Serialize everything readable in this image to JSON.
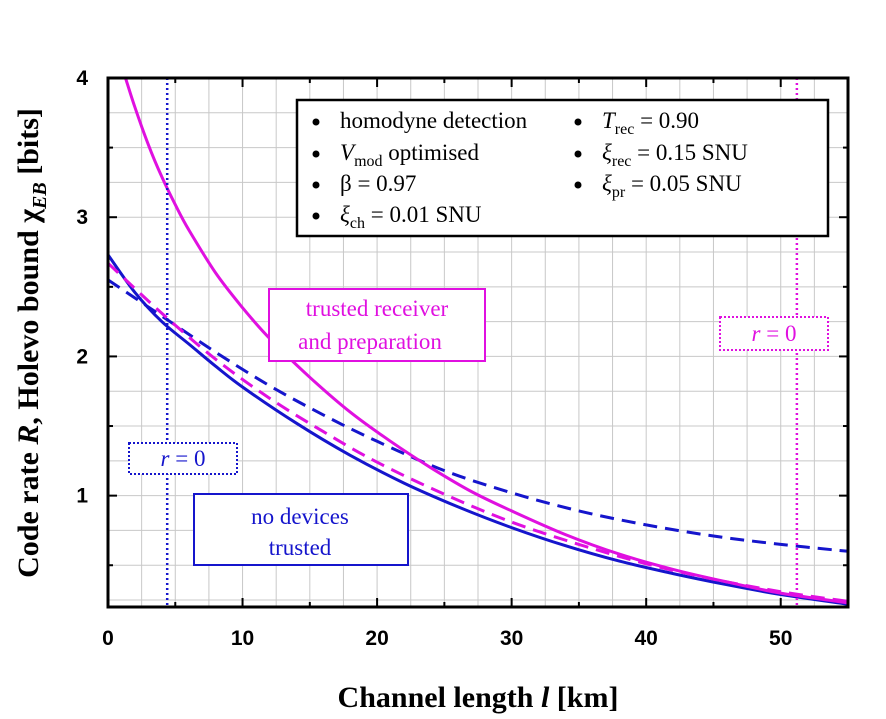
{
  "chart_data": {
    "type": "line",
    "xlabel": "Channel length",
    "xlabel_var": "l",
    "xlabel_unit": "[km]",
    "ylabel_prefix": "Code rate",
    "ylabel_var_r": "R",
    "ylabel_middle": ", Holevo bound",
    "ylabel_chi": "χ",
    "ylabel_sub": "EB",
    "ylabel_unit": "[bits]",
    "xlim": [
      0,
      55
    ],
    "ylim": [
      0.2,
      4
    ],
    "xticks": [
      "0",
      "10",
      "20",
      "30",
      "40",
      "50"
    ],
    "yticks": [
      "1",
      "2",
      "3",
      "4"
    ],
    "grid": true,
    "colors": {
      "blue": "#1515cc",
      "magenta": "#e010e0"
    },
    "series": [
      {
        "name": "code rate R, no devices trusted",
        "color": "#1515cc",
        "dash": "solid",
        "x": [
          0,
          2,
          4,
          6,
          8,
          10,
          14,
          18,
          22,
          26,
          30,
          34,
          38,
          42,
          46,
          50,
          55
        ],
        "y": [
          2.73,
          2.46,
          2.25,
          2.09,
          1.93,
          1.78,
          1.52,
          1.29,
          1.09,
          0.92,
          0.77,
          0.64,
          0.53,
          0.44,
          0.36,
          0.29,
          0.22
        ]
      },
      {
        "name": "Holevo bound, no devices trusted",
        "color": "#1515cc",
        "dash": "dashed",
        "x": [
          0,
          4,
          8,
          12,
          16,
          20,
          25,
          30,
          35,
          40,
          45,
          50,
          55
        ],
        "y": [
          2.55,
          2.29,
          2.03,
          1.79,
          1.58,
          1.39,
          1.18,
          1.02,
          0.89,
          0.79,
          0.71,
          0.65,
          0.6
        ]
      },
      {
        "name": "code rate R, trusted receiver and preparation",
        "color": "#e010e0",
        "dash": "solid",
        "x": [
          1.3,
          2,
          3,
          4,
          5,
          6,
          8,
          10,
          12,
          15,
          18,
          21,
          24,
          27,
          30,
          34,
          38,
          42,
          46,
          50,
          55
        ],
        "y": [
          4.0,
          3.79,
          3.52,
          3.29,
          3.09,
          2.91,
          2.6,
          2.35,
          2.13,
          1.85,
          1.6,
          1.39,
          1.2,
          1.03,
          0.89,
          0.72,
          0.58,
          0.47,
          0.38,
          0.3,
          0.23
        ]
      },
      {
        "name": "Holevo bound, trusted receiver and preparation",
        "color": "#e010e0",
        "dash": "dashed",
        "x": [
          0,
          4,
          8,
          12,
          16,
          20,
          25,
          30,
          35,
          40,
          45,
          50,
          55
        ],
        "y": [
          2.67,
          2.31,
          1.98,
          1.7,
          1.46,
          1.24,
          1.01,
          0.81,
          0.65,
          0.51,
          0.4,
          0.31,
          0.24
        ]
      }
    ],
    "vlines": [
      {
        "x": 4.4,
        "color": "#1515cc",
        "label": "r = 0"
      },
      {
        "x": 51.2,
        "color": "#e010e0",
        "label": "r = 0"
      }
    ],
    "annotations": {
      "trusted": [
        "trusted receiver",
        "and preparation"
      ],
      "nodev": [
        "no devices",
        "trusted"
      ],
      "r0_var": "r",
      "r0_rest": " = 0"
    },
    "legend": {
      "col1": [
        {
          "main": "homodyne detection",
          "sub": "",
          "rest": ""
        },
        {
          "main": "V",
          "sub": "mod",
          "rest": " optimised"
        },
        {
          "main": "β",
          "sub": "",
          "rest": " = 0.97"
        },
        {
          "main": "ξ",
          "sub": "ch",
          "rest": " = 0.01 SNU"
        }
      ],
      "col2": [
        {
          "main": "T",
          "sub": "rec",
          "rest": " = 0.90"
        },
        {
          "main": "ξ",
          "sub": "rec",
          "rest": " = 0.15 SNU"
        },
        {
          "main": "ξ",
          "sub": "pr",
          "rest": " = 0.05 SNU"
        }
      ]
    }
  }
}
